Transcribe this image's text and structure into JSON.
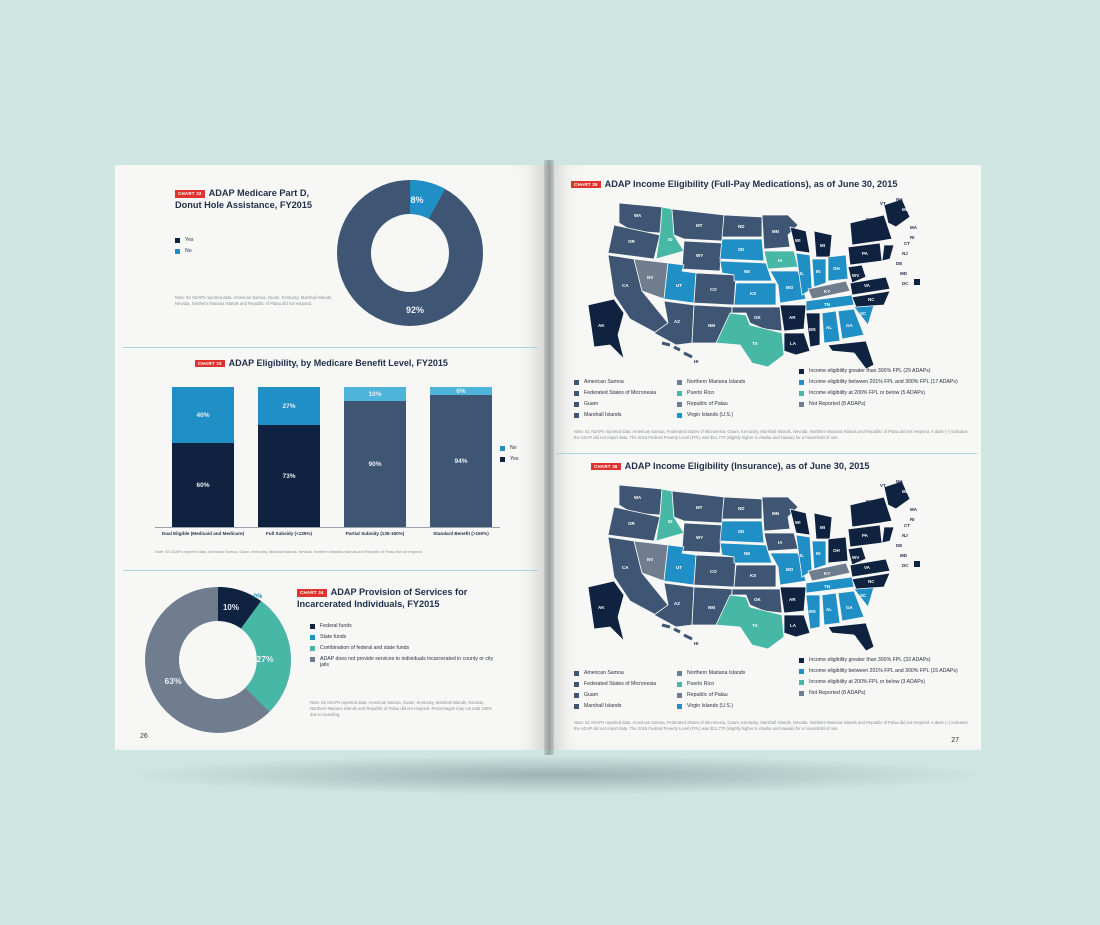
{
  "colors": {
    "navy": "#0f2340",
    "slate": "#3e5673",
    "blue": "#1f8fc5",
    "teal": "#48b8a6",
    "gray": "#6f7d8f",
    "lightblue": "#4fb4d9",
    "tag": "#e0332e",
    "bg": "#cfe5e2"
  },
  "left": {
    "chart32": {
      "tag": "CHART 32",
      "title_line1": "ADAP Medicare Part D,",
      "title_line2": "Donut Hole Assistance, FY2015",
      "legend": [
        {
          "label": "Yes",
          "color": "#0f2340"
        },
        {
          "label": "No",
          "color": "#1f8fc5"
        }
      ],
      "note": "Note: 52 ADAPs reported data. American Samoa, Guam, Kentucky, Marshall Islands, Nevada, Northern Mariana Islands and Republic of Palau did not respond.",
      "labels": {
        "no": "8%",
        "yes": "92%"
      },
      "slices": [
        {
          "name": "No",
          "value": 8,
          "color": "#1f8fc5"
        },
        {
          "name": "Yes",
          "value": 92,
          "color": "#3e5673"
        }
      ]
    },
    "chart33": {
      "tag": "CHART 33",
      "title": "ADAP Eligibility, by Medicare Benefit Level, FY2015",
      "legend": [
        {
          "label": "No",
          "color": "#1f8fc5"
        },
        {
          "label": "Yes",
          "color": "#0f2340"
        }
      ],
      "bars": [
        {
          "category": "Dual Eligible (Medicaid and Medicare)",
          "yes": 60,
          "no": 40,
          "yes_label": "60%",
          "no_label": "40%",
          "yes_color": "#0f2340"
        },
        {
          "category": "Full Subsidy (<135%)",
          "yes": 73,
          "no": 27,
          "yes_label": "73%",
          "no_label": "27%",
          "yes_color": "#0f2340"
        },
        {
          "category": "Partial Subsidy (135-150%)",
          "yes": 90,
          "no": 10,
          "yes_label": "90%",
          "no_label": "10%",
          "yes_color": "#3e5673"
        },
        {
          "category": "Standard Benefit (>150%)",
          "yes": 94,
          "no": 6,
          "yes_label": "94%",
          "no_label": "6%",
          "yes_color": "#3e5673"
        }
      ],
      "note": "Note: 52 ADAPs reported data. American Samoa, Guam, Kentucky, Marshall Islands, Nevada, Northern Mariana Islands and Republic of Palau did not respond."
    },
    "chart34": {
      "tag": "CHART 34",
      "title_line1": "ADAP Provision of Services for",
      "title_line2": "Incarcerated Individuals, FY2015",
      "legend": [
        {
          "label": "Federal funds",
          "color": "#0f2340"
        },
        {
          "label": "State funds",
          "color": "#1f8fc5"
        },
        {
          "label": "Combination of federal and state funds",
          "color": "#48b8a6"
        },
        {
          "label": "ADAP does not provide services to individuals incarcerated in county or city jails",
          "color": "#6f7d8f"
        }
      ],
      "labels": {
        "federal": "10%",
        "state": "0%",
        "combination": "27%",
        "none": "63%"
      },
      "slices": [
        {
          "name": "Federal funds",
          "value": 10,
          "color": "#0f2340"
        },
        {
          "name": "State funds",
          "value": 0,
          "color": "#1f8fc5"
        },
        {
          "name": "Combination of federal and state funds",
          "value": 27,
          "color": "#48b8a6"
        },
        {
          "name": "ADAP does not provide services",
          "value": 63,
          "color": "#6f7d8f"
        }
      ],
      "note": "Note: 52 ADAPs reported data. American Samoa, Guam, Kentucky, Marshall Islands, Nevada, Northern Mariana Islands and Republic of Palau did not respond. Percentages may not total 100% due to rounding."
    },
    "page_number": "26"
  },
  "right": {
    "chart35": {
      "tag": "CHART 35",
      "title": "ADAP Income Eligibility (Full-Pay Medications), as of June 30, 2015",
      "territories": [
        {
          "label": "American Samoa",
          "color": "#3e5673"
        },
        {
          "label": "Federated States of Micronesia",
          "color": "#3e5673"
        },
        {
          "label": "Guam",
          "color": "#3e5673"
        },
        {
          "label": "Marshall Islands",
          "color": "#3e5673"
        },
        {
          "label": "Northern Mariana Islands",
          "color": "#6f7d8f"
        },
        {
          "label": "Puerto Rico",
          "color": "#48b8a6"
        },
        {
          "label": "Republic of Palau",
          "color": "#6f7d8f"
        },
        {
          "label": "Virgin Islands (U.S.)",
          "color": "#1f8fc5"
        }
      ],
      "legend": [
        {
          "label": "Income eligibility greater than 300% FPL (29 ADAPs)",
          "color": "#0f2340"
        },
        {
          "label": "Income eligibility between 201% FPL and 300% FPL (17 ADAPs)",
          "color": "#1f8fc5"
        },
        {
          "label": "Income eligibility at 200% FPL or below (5 ADAPs)",
          "color": "#48b8a6"
        },
        {
          "label": "Not Reported (8 ADAPs)",
          "color": "#6f7d8f"
        }
      ],
      "note": "Note: 51 ADAPs reported data. American Samoa, Federated States of Micronesia, Guam, Kentucky, Marshall Islands, Nevada, Northern Mariana Islands and Republic of Palau did not respond. A dash (–) indicates the ADAP did not report data. The 2015 Federal Poverty Level (FPL) was $11,770 (slightly higher in Alaska and Hawaii) for a household of one."
    },
    "chart36": {
      "tag": "CHART 36",
      "title": "ADAP Income Eligibility (Insurance), as of June 30, 2015",
      "territories": [
        {
          "label": "American Samoa",
          "color": "#3e5673"
        },
        {
          "label": "Federated States of Micronesia",
          "color": "#3e5673"
        },
        {
          "label": "Guam",
          "color": "#3e5673"
        },
        {
          "label": "Marshall Islands",
          "color": "#3e5673"
        },
        {
          "label": "Northern Mariana Islands",
          "color": "#6f7d8f"
        },
        {
          "label": "Puerto Rico",
          "color": "#48b8a6"
        },
        {
          "label": "Republic of Palau",
          "color": "#6f7d8f"
        },
        {
          "label": "Virgin Islands (U.S.)",
          "color": "#1f8fc5"
        }
      ],
      "legend": [
        {
          "label": "Income eligibility greater than 300% FPL (33 ADAPs)",
          "color": "#0f2340"
        },
        {
          "label": "Income eligibility between 201% FPL and 300% FPL (15 ADAPs)",
          "color": "#1f8fc5"
        },
        {
          "label": "Income eligibility at 200% FPL or below (3 ADAPs)",
          "color": "#48b8a6"
        },
        {
          "label": "Not Reported (8 ADAPs)",
          "color": "#6f7d8f"
        }
      ],
      "note": "Note: 51 ADAPs reported data. American Samoa, Federated States of Micronesia, Guam, Kentucky, Marshall Islands, Nevada, Northern Mariana Islands and Republic of Palau did not respond. A dash (–) indicates the ADAP did not report data. The 2015 Federal Poverty Level (FPL) was $11,770 (slightly higher in Alaska and Hawaii) for a household of one."
    },
    "map_labels": [
      "WA",
      "OR",
      "CA",
      "ID",
      "NV",
      "MT",
      "WY",
      "UT",
      "AZ",
      "CO",
      "NM",
      "ND",
      "SD",
      "NE",
      "KS",
      "OK",
      "TX",
      "MN",
      "IA",
      "MO",
      "AR",
      "LA",
      "WI",
      "IL",
      "MI",
      "IN",
      "OH",
      "KY",
      "TN",
      "MS",
      "AL",
      "GA",
      "FL",
      "SC",
      "NC",
      "VA",
      "WV",
      "PA",
      "NY",
      "VT",
      "NH",
      "ME",
      "MA",
      "RI",
      "CT",
      "NJ",
      "DE",
      "MD",
      "DC",
      "AK",
      "HI"
    ],
    "page_number": "27"
  }
}
